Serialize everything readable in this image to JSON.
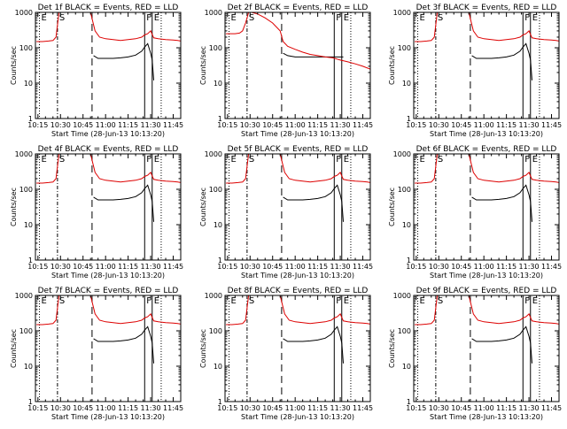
{
  "figure": {
    "ylabel": "Counts/sec",
    "xlabel": "Start Time (28-Jun-13 10:13:20)",
    "colors": {
      "events": "#000000",
      "lld": "#dd0000",
      "axes": "#000000"
    },
    "xlim": [
      "10:13:20",
      "11:50:00"
    ],
    "ylim": [
      1,
      1000
    ],
    "yscale": "log",
    "grid": false,
    "xticks": [
      "10:15",
      "10:30",
      "10:45",
      "11:00",
      "11:15",
      "11:30",
      "11:45"
    ],
    "yticks": [
      "1",
      "10",
      "100",
      "1000"
    ],
    "markers": [
      {
        "time": "10:16",
        "label": "E",
        "style": "dotted"
      },
      {
        "time": "10:28",
        "label": "S",
        "style": "dash-dot"
      },
      {
        "time": "10:51",
        "label": "",
        "style": "dashed"
      },
      {
        "time": "11:26",
        "label": "F",
        "style": "solid"
      },
      {
        "time": "11:31",
        "label": "E",
        "style": "solid"
      },
      {
        "time": "11:37",
        "label": "",
        "style": "dotted"
      }
    ]
  },
  "chart_data": [
    {
      "type": "line",
      "title": "Det 1f BLACK = Events, RED = LLD",
      "series": [
        {
          "name": "Events",
          "color": "#000000",
          "x": [
            "10:52",
            "10:55",
            "11:00",
            "11:05",
            "11:10",
            "11:15",
            "11:20",
            "11:24",
            "11:26",
            "11:28",
            "11:30",
            "11:31",
            "11:32"
          ],
          "y": [
            60,
            50,
            50,
            50,
            52,
            55,
            62,
            80,
            105,
            130,
            70,
            45,
            12
          ]
        },
        {
          "name": "LLD",
          "color": "#dd0000",
          "x": [
            "10:14",
            "10:18",
            "10:22",
            "10:25",
            "10:27",
            "10:29",
            "10:32",
            "10:45",
            "10:50",
            "10:53",
            "10:56",
            "11:00",
            "11:05",
            "11:10",
            "11:15",
            "11:20",
            "11:24",
            "11:26",
            "11:28",
            "11:30",
            "11:32",
            "11:35",
            "11:40",
            "11:45",
            "11:48",
            "11:50"
          ],
          "y": [
            150,
            150,
            155,
            160,
            200,
            1000,
            1000,
            1000,
            1000,
            300,
            200,
            180,
            170,
            160,
            170,
            180,
            200,
            230,
            250,
            300,
            190,
            180,
            170,
            165,
            160,
            155
          ]
        }
      ]
    },
    {
      "type": "line",
      "title": "Det 2f BLACK = Events, RED = LLD",
      "series": [
        {
          "name": "Events",
          "color": "#000000",
          "x": [
            "10:52",
            "10:55",
            "11:00",
            "11:10",
            "11:20",
            "11:25",
            "11:30",
            "11:32"
          ],
          "y": [
            70,
            60,
            55,
            55,
            55,
            55,
            55,
            55
          ]
        },
        {
          "name": "LLD",
          "color": "#dd0000",
          "x": [
            "10:14",
            "10:20",
            "10:23",
            "10:25",
            "10:27",
            "10:29",
            "10:31",
            "10:35",
            "10:40",
            "10:45",
            "10:50",
            "10:52",
            "10:55",
            "11:00",
            "11:05",
            "11:10",
            "11:15",
            "11:20",
            "11:25",
            "11:30",
            "11:35",
            "11:40",
            "11:45",
            "11:50"
          ],
          "y": [
            250,
            250,
            260,
            300,
            500,
            1000,
            1000,
            900,
            700,
            500,
            300,
            150,
            110,
            90,
            75,
            65,
            60,
            55,
            52,
            45,
            40,
            35,
            30,
            25
          ]
        }
      ]
    },
    {
      "type": "line",
      "title": "Det 3f BLACK = Events, RED = LLD",
      "series": [
        {
          "name": "Events",
          "color": "#000000",
          "x": [
            "10:52",
            "10:55",
            "11:00",
            "11:05",
            "11:10",
            "11:15",
            "11:20",
            "11:24",
            "11:26",
            "11:28",
            "11:30",
            "11:31",
            "11:32"
          ],
          "y": [
            60,
            50,
            50,
            50,
            52,
            55,
            62,
            80,
            105,
            130,
            70,
            45,
            12
          ]
        },
        {
          "name": "LLD",
          "color": "#dd0000",
          "x": [
            "10:14",
            "10:18",
            "10:22",
            "10:25",
            "10:27",
            "10:29",
            "10:32",
            "10:45",
            "10:50",
            "10:53",
            "10:56",
            "11:00",
            "11:05",
            "11:10",
            "11:15",
            "11:20",
            "11:24",
            "11:26",
            "11:28",
            "11:30",
            "11:32",
            "11:35",
            "11:40",
            "11:45",
            "11:48",
            "11:50"
          ],
          "y": [
            150,
            150,
            155,
            160,
            200,
            1000,
            1000,
            1000,
            1000,
            300,
            200,
            180,
            170,
            160,
            170,
            180,
            200,
            230,
            250,
            300,
            190,
            180,
            170,
            165,
            160,
            155
          ]
        }
      ]
    },
    {
      "type": "line",
      "title": "Det 4f BLACK = Events, RED = LLD",
      "series": [
        {
          "name": "Events",
          "color": "#000000",
          "x": [
            "10:52",
            "10:55",
            "11:00",
            "11:05",
            "11:10",
            "11:15",
            "11:20",
            "11:24",
            "11:26",
            "11:28",
            "11:30",
            "11:31",
            "11:32"
          ],
          "y": [
            60,
            50,
            50,
            50,
            52,
            55,
            62,
            80,
            105,
            130,
            70,
            45,
            12
          ]
        },
        {
          "name": "LLD",
          "color": "#dd0000",
          "x": [
            "10:14",
            "10:18",
            "10:22",
            "10:25",
            "10:27",
            "10:29",
            "10:32",
            "10:45",
            "10:50",
            "10:53",
            "10:56",
            "11:00",
            "11:05",
            "11:10",
            "11:15",
            "11:20",
            "11:24",
            "11:26",
            "11:28",
            "11:30",
            "11:32",
            "11:35",
            "11:40",
            "11:45",
            "11:48",
            "11:50"
          ],
          "y": [
            150,
            150,
            155,
            160,
            200,
            1000,
            1000,
            1000,
            1000,
            300,
            200,
            180,
            170,
            160,
            170,
            180,
            200,
            230,
            250,
            300,
            190,
            180,
            170,
            165,
            160,
            155
          ]
        }
      ]
    },
    {
      "type": "line",
      "title": "Det 5f BLACK = Events, RED = LLD",
      "series": [
        {
          "name": "Events",
          "color": "#000000",
          "x": [
            "10:52",
            "10:55",
            "11:00",
            "11:05",
            "11:10",
            "11:15",
            "11:20",
            "11:24",
            "11:26",
            "11:28",
            "11:30",
            "11:31",
            "11:32"
          ],
          "y": [
            60,
            50,
            50,
            50,
            52,
            55,
            62,
            80,
            105,
            130,
            70,
            45,
            12
          ]
        },
        {
          "name": "LLD",
          "color": "#dd0000",
          "x": [
            "10:14",
            "10:18",
            "10:22",
            "10:25",
            "10:27",
            "10:29",
            "10:32",
            "10:45",
            "10:50",
            "10:53",
            "10:56",
            "11:00",
            "11:05",
            "11:10",
            "11:15",
            "11:20",
            "11:24",
            "11:26",
            "11:28",
            "11:30",
            "11:32",
            "11:35",
            "11:40",
            "11:45",
            "11:48",
            "11:50"
          ],
          "y": [
            150,
            150,
            155,
            160,
            200,
            1000,
            1000,
            1000,
            1000,
            300,
            200,
            180,
            170,
            160,
            170,
            180,
            200,
            230,
            250,
            300,
            190,
            180,
            170,
            165,
            160,
            155
          ]
        }
      ]
    },
    {
      "type": "line",
      "title": "Det 6f BLACK = Events, RED = LLD",
      "series": [
        {
          "name": "Events",
          "color": "#000000",
          "x": [
            "10:52",
            "10:55",
            "11:00",
            "11:05",
            "11:10",
            "11:15",
            "11:20",
            "11:24",
            "11:26",
            "11:28",
            "11:30",
            "11:31",
            "11:32"
          ],
          "y": [
            60,
            50,
            50,
            50,
            52,
            55,
            62,
            80,
            105,
            130,
            70,
            45,
            12
          ]
        },
        {
          "name": "LLD",
          "color": "#dd0000",
          "x": [
            "10:14",
            "10:18",
            "10:22",
            "10:25",
            "10:27",
            "10:29",
            "10:32",
            "10:45",
            "10:50",
            "10:53",
            "10:56",
            "11:00",
            "11:05",
            "11:10",
            "11:15",
            "11:20",
            "11:24",
            "11:26",
            "11:28",
            "11:30",
            "11:32",
            "11:35",
            "11:40",
            "11:45",
            "11:48",
            "11:50"
          ],
          "y": [
            150,
            150,
            155,
            160,
            200,
            1000,
            1000,
            1000,
            1000,
            300,
            200,
            180,
            170,
            160,
            170,
            180,
            200,
            230,
            250,
            300,
            190,
            180,
            170,
            165,
            160,
            155
          ]
        }
      ]
    },
    {
      "type": "line",
      "title": "Det 7f BLACK = Events, RED = LLD",
      "series": [
        {
          "name": "Events",
          "color": "#000000",
          "x": [
            "10:52",
            "10:55",
            "11:00",
            "11:05",
            "11:10",
            "11:15",
            "11:20",
            "11:24",
            "11:26",
            "11:28",
            "11:30",
            "11:31",
            "11:32"
          ],
          "y": [
            60,
            50,
            50,
            50,
            52,
            55,
            62,
            80,
            105,
            130,
            70,
            45,
            12
          ]
        },
        {
          "name": "LLD",
          "color": "#dd0000",
          "x": [
            "10:14",
            "10:18",
            "10:22",
            "10:25",
            "10:27",
            "10:29",
            "10:32",
            "10:45",
            "10:50",
            "10:53",
            "10:56",
            "11:00",
            "11:05",
            "11:10",
            "11:15",
            "11:20",
            "11:24",
            "11:26",
            "11:28",
            "11:30",
            "11:32",
            "11:35",
            "11:40",
            "11:45",
            "11:48",
            "11:50"
          ],
          "y": [
            150,
            150,
            155,
            160,
            200,
            1000,
            1000,
            1000,
            1000,
            300,
            200,
            180,
            170,
            160,
            170,
            180,
            200,
            230,
            250,
            300,
            190,
            180,
            170,
            165,
            160,
            155
          ]
        }
      ]
    },
    {
      "type": "line",
      "title": "Det 8f BLACK = Events, RED = LLD",
      "series": [
        {
          "name": "Events",
          "color": "#000000",
          "x": [
            "10:52",
            "10:55",
            "11:00",
            "11:05",
            "11:10",
            "11:15",
            "11:20",
            "11:24",
            "11:26",
            "11:28",
            "11:30",
            "11:31",
            "11:32"
          ],
          "y": [
            60,
            50,
            50,
            50,
            52,
            55,
            62,
            80,
            105,
            130,
            70,
            45,
            12
          ]
        },
        {
          "name": "LLD",
          "color": "#dd0000",
          "x": [
            "10:14",
            "10:18",
            "10:22",
            "10:25",
            "10:27",
            "10:29",
            "10:32",
            "10:45",
            "10:50",
            "10:53",
            "10:56",
            "11:00",
            "11:05",
            "11:10",
            "11:15",
            "11:20",
            "11:24",
            "11:26",
            "11:28",
            "11:30",
            "11:32",
            "11:35",
            "11:40",
            "11:45",
            "11:48",
            "11:50"
          ],
          "y": [
            150,
            150,
            155,
            160,
            200,
            1000,
            1000,
            1000,
            1000,
            300,
            200,
            180,
            170,
            160,
            170,
            180,
            200,
            230,
            250,
            300,
            190,
            180,
            170,
            165,
            160,
            155
          ]
        }
      ]
    },
    {
      "type": "line",
      "title": "Det 9f BLACK = Events, RED = LLD",
      "series": [
        {
          "name": "Events",
          "color": "#000000",
          "x": [
            "10:52",
            "10:55",
            "11:00",
            "11:05",
            "11:10",
            "11:15",
            "11:20",
            "11:24",
            "11:26",
            "11:28",
            "11:30",
            "11:31",
            "11:32"
          ],
          "y": [
            60,
            50,
            50,
            50,
            52,
            55,
            62,
            80,
            105,
            130,
            70,
            45,
            12
          ]
        },
        {
          "name": "LLD",
          "color": "#dd0000",
          "x": [
            "10:14",
            "10:18",
            "10:22",
            "10:25",
            "10:27",
            "10:29",
            "10:32",
            "10:45",
            "10:50",
            "10:53",
            "10:56",
            "11:00",
            "11:05",
            "11:10",
            "11:15",
            "11:20",
            "11:24",
            "11:26",
            "11:28",
            "11:30",
            "11:32",
            "11:35",
            "11:40",
            "11:45",
            "11:48",
            "11:50"
          ],
          "y": [
            150,
            150,
            155,
            160,
            200,
            1000,
            1000,
            1000,
            1000,
            300,
            200,
            180,
            170,
            160,
            170,
            180,
            200,
            230,
            250,
            300,
            190,
            180,
            170,
            165,
            160,
            155
          ]
        }
      ]
    }
  ]
}
